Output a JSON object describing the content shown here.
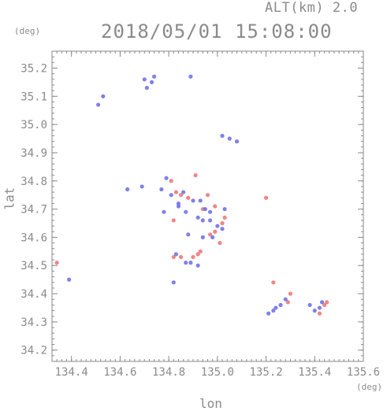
{
  "header": {
    "altitude_label": "ALT(km) 2.0",
    "datetime": "2018/05/01 15:08:00"
  },
  "chart_data": {
    "type": "scatter",
    "title": "2018/05/01 15:08:00",
    "subtitle": "ALT(km) 2.0",
    "xlabel": "lon",
    "ylabel": "lat",
    "x_unit": "(deg)",
    "y_unit": "(deg)",
    "xlim": [
      134.32,
      135.6
    ],
    "ylim": [
      34.16,
      35.26
    ],
    "x_ticks": [
      "134.4",
      "134.6",
      "134.8",
      "135.0",
      "135.2",
      "135.4",
      "135.6"
    ],
    "y_ticks": [
      "34.2",
      "34.3",
      "34.4",
      "34.5",
      "34.6",
      "34.7",
      "34.8",
      "34.9",
      "35.0",
      "35.1",
      "35.2"
    ],
    "grid": false,
    "colors": {
      "red": "#f07070",
      "blue": "#6a6ae6",
      "axis": "#8a8a8a"
    },
    "series": [
      {
        "color": "red",
        "points": [
          [
            134.34,
            34.51
          ],
          [
            134.81,
            34.8
          ],
          [
            134.83,
            34.76
          ],
          [
            134.85,
            34.75
          ],
          [
            134.88,
            34.74
          ],
          [
            134.82,
            34.66
          ],
          [
            134.96,
            34.75
          ],
          [
            134.99,
            34.71
          ],
          [
            135.03,
            34.67
          ],
          [
            135.02,
            34.65
          ],
          [
            134.97,
            34.61
          ],
          [
            134.99,
            34.62
          ],
          [
            134.82,
            34.53
          ],
          [
            134.85,
            34.53
          ],
          [
            134.92,
            34.54
          ],
          [
            134.93,
            34.55
          ],
          [
            134.9,
            34.53
          ],
          [
            135.2,
            34.74
          ],
          [
            135.23,
            34.44
          ],
          [
            135.3,
            34.4
          ],
          [
            135.29,
            34.37
          ],
          [
            135.45,
            34.37
          ],
          [
            135.44,
            34.36
          ],
          [
            135.42,
            34.33
          ],
          [
            134.91,
            34.82
          ],
          [
            135.01,
            34.58
          ],
          [
            134.94,
            34.7
          ]
        ]
      },
      {
        "color": "blue",
        "points": [
          [
            134.53,
            35.1
          ],
          [
            134.51,
            35.07
          ],
          [
            134.39,
            34.45
          ],
          [
            134.7,
            35.16
          ],
          [
            134.71,
            35.13
          ],
          [
            134.73,
            35.15
          ],
          [
            134.74,
            35.17
          ],
          [
            134.89,
            35.17
          ],
          [
            135.02,
            34.96
          ],
          [
            135.05,
            34.95
          ],
          [
            135.08,
            34.94
          ],
          [
            134.79,
            34.81
          ],
          [
            134.77,
            34.77
          ],
          [
            134.81,
            34.75
          ],
          [
            134.86,
            34.76
          ],
          [
            134.84,
            34.72
          ],
          [
            134.9,
            34.73
          ],
          [
            134.93,
            34.73
          ],
          [
            134.95,
            34.7
          ],
          [
            134.97,
            34.69
          ],
          [
            134.84,
            34.71
          ],
          [
            134.87,
            34.69
          ],
          [
            134.92,
            34.67
          ],
          [
            134.94,
            34.66
          ],
          [
            134.97,
            34.66
          ],
          [
            135.0,
            34.64
          ],
          [
            135.02,
            34.63
          ],
          [
            134.98,
            34.6
          ],
          [
            134.94,
            34.6
          ],
          [
            134.88,
            34.61
          ],
          [
            134.83,
            34.54
          ],
          [
            134.89,
            34.51
          ],
          [
            134.92,
            34.5
          ],
          [
            134.87,
            34.51
          ],
          [
            134.82,
            34.44
          ],
          [
            134.63,
            34.77
          ],
          [
            134.69,
            34.78
          ],
          [
            135.24,
            34.35
          ],
          [
            135.26,
            34.36
          ],
          [
            135.21,
            34.33
          ],
          [
            135.23,
            34.34
          ],
          [
            135.28,
            34.38
          ],
          [
            135.42,
            34.35
          ],
          [
            135.4,
            34.34
          ],
          [
            135.38,
            34.36
          ],
          [
            135.43,
            34.37
          ],
          [
            135.03,
            34.7
          ],
          [
            134.78,
            34.69
          ]
        ]
      }
    ]
  }
}
